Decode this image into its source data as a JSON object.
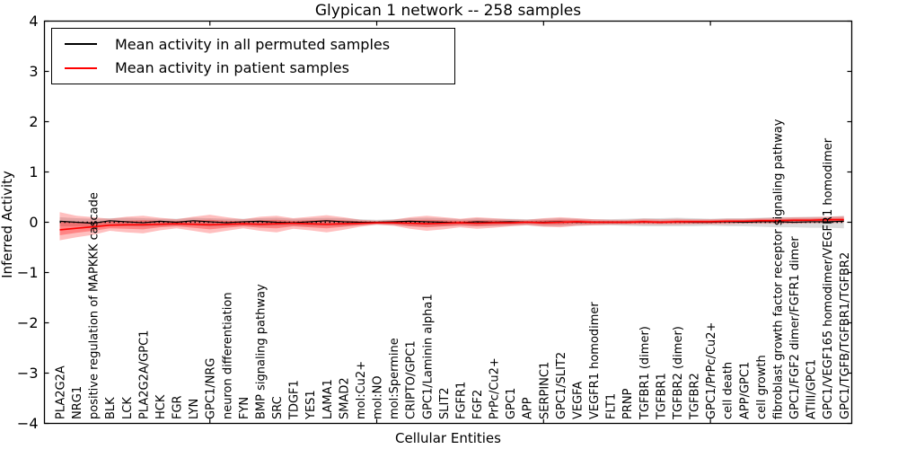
{
  "title": "Glypican 1 network -- 258 samples",
  "axes": {
    "x_label": "Cellular Entities",
    "y_label": "Inferred Activity"
  },
  "legend": {
    "position": "upper left",
    "items": [
      {
        "label": "Mean activity in all permuted samples",
        "color": "#000000"
      },
      {
        "label": "Mean activity in patient samples",
        "color": "#ff0000"
      }
    ]
  },
  "chart_data": {
    "type": "line",
    "title": "Glypican 1 network -- 258 samples",
    "xlabel": "Cellular Entities",
    "ylabel": "Inferred Activity",
    "ylim": [
      -4,
      4
    ],
    "yticks": [
      4,
      3,
      2,
      1,
      0,
      -1,
      -2,
      -3,
      -4
    ],
    "x_major_tick_indices": [
      9,
      19,
      29,
      39
    ],
    "grid": false,
    "legend_position": "upper left",
    "zero_line": {
      "style": "dotted",
      "color": "#000000",
      "y": 0
    },
    "categories": [
      "PLA2G2A",
      "NRG1",
      "positive regulation of MAPKKK cascade",
      "BLK",
      "LCK",
      "PLA2G2A/GPC1",
      "HCK",
      "FGR",
      "LYN",
      "GPC1/NRG",
      "neuron differentiation",
      "FYN",
      "BMP signaling pathway",
      "SRC",
      "TDGF1",
      "YES1",
      "LAMA1",
      "SMAD2",
      "mol:Cu2+",
      "mol:NO",
      "mol:Spermine",
      "CRIPTO/GPC1",
      "GPC1/Laminin alpha1",
      "SLIT2",
      "FGFR1",
      "FGF2",
      "PrPc/Cu2+",
      "GPC1",
      "APP",
      "SERPINC1",
      "GPC1/SLIT2",
      "VEGFA",
      "VEGFR1 homodimer",
      "FLT1",
      "PRNP",
      "TGFBR1 (dimer)",
      "TGFBR1",
      "TGFBR2 (dimer)",
      "TGFBR2",
      "GPC1/PrPc/Cu2+",
      "cell death",
      "APP/GPC1",
      "cell growth",
      "fibroblast growth factor receptor signaling pathway",
      "GPC1/FGF2 dimer/FGFR1 dimer",
      "ATIII/GPC1",
      "GPC1/VEGF165 homodimer/VEGFR1 homodimer",
      "GPC1/TGFB/TGFBR1/TGFBR2"
    ],
    "series": [
      {
        "name": "Mean activity in all permuted samples",
        "color": "#000000",
        "width": 1.2,
        "values": [
          0.02,
          0.0,
          -0.02,
          0.03,
          0.01,
          -0.01,
          0.02,
          0.0,
          0.03,
          0.01,
          -0.01,
          0.01,
          0.02,
          0.0,
          -0.01,
          0.01,
          0.03,
          0.01,
          0.0,
          0.0,
          0.01,
          0.02,
          0.01,
          0.0,
          -0.01,
          0.01,
          0.0,
          0.01,
          0.0,
          0.0,
          0.01,
          0.0,
          0.0,
          0.0,
          0.0,
          0.01,
          0.0,
          0.01,
          0.0,
          0.0,
          0.01,
          0.0,
          0.01,
          0.01,
          0.0,
          0.01,
          0.01,
          0.02
        ]
      },
      {
        "name": "Mean activity in patient samples",
        "color": "#ff0000",
        "width": 1.6,
        "values": [
          -0.15,
          -0.12,
          -0.09,
          -0.06,
          -0.05,
          -0.05,
          -0.04,
          -0.03,
          -0.04,
          -0.05,
          -0.04,
          -0.03,
          -0.04,
          -0.03,
          -0.02,
          -0.03,
          -0.04,
          -0.03,
          -0.02,
          -0.01,
          -0.01,
          -0.02,
          -0.03,
          -0.02,
          -0.01,
          -0.02,
          -0.01,
          -0.01,
          0.0,
          -0.01,
          0.0,
          0.01,
          0.0,
          0.0,
          0.0,
          0.01,
          0.0,
          0.01,
          0.01,
          0.01,
          0.02,
          0.02,
          0.03,
          0.03,
          0.04,
          0.04,
          0.05,
          0.05
        ]
      }
    ],
    "bands": [
      {
        "name": "permuted-samples-spread",
        "color": "#999999",
        "opacity": 0.35,
        "upper": [
          0.1,
          0.08,
          0.07,
          0.08,
          0.09,
          0.08,
          0.07,
          0.07,
          0.09,
          0.08,
          0.07,
          0.07,
          0.08,
          0.09,
          0.07,
          0.08,
          0.09,
          0.08,
          0.06,
          0.05,
          0.06,
          0.08,
          0.09,
          0.08,
          0.06,
          0.08,
          0.07,
          0.07,
          0.06,
          0.07,
          0.08,
          0.07,
          0.06,
          0.06,
          0.07,
          0.08,
          0.08,
          0.09,
          0.08,
          0.07,
          0.08,
          0.08,
          0.09,
          0.1,
          0.1,
          0.11,
          0.11,
          0.13
        ],
        "lower": [
          -0.08,
          -0.08,
          -0.09,
          -0.07,
          -0.08,
          -0.09,
          -0.08,
          -0.07,
          -0.07,
          -0.09,
          -0.08,
          -0.07,
          -0.08,
          -0.08,
          -0.07,
          -0.08,
          -0.08,
          -0.08,
          -0.06,
          -0.05,
          -0.06,
          -0.08,
          -0.09,
          -0.08,
          -0.07,
          -0.08,
          -0.08,
          -0.07,
          -0.06,
          -0.08,
          -0.08,
          -0.07,
          -0.06,
          -0.06,
          -0.07,
          -0.08,
          -0.08,
          -0.08,
          -0.08,
          -0.07,
          -0.08,
          -0.08,
          -0.09,
          -0.1,
          -0.1,
          -0.11,
          -0.11,
          -0.12
        ]
      },
      {
        "name": "patient-samples-spread-outer",
        "color": "#ff0000",
        "opacity": 0.25,
        "upper": [
          0.2,
          0.13,
          0.1,
          0.07,
          0.11,
          0.13,
          0.09,
          0.06,
          0.11,
          0.15,
          0.1,
          0.06,
          0.11,
          0.13,
          0.08,
          0.11,
          0.14,
          0.1,
          0.05,
          0.03,
          0.05,
          0.1,
          0.13,
          0.1,
          0.07,
          0.1,
          0.08,
          0.06,
          0.05,
          0.08,
          0.1,
          0.08,
          0.06,
          0.05,
          0.05,
          0.07,
          0.06,
          0.07,
          0.06,
          0.06,
          0.07,
          0.07,
          0.08,
          0.09,
          0.1,
          0.1,
          0.11,
          0.12
        ],
        "lower": [
          -0.36,
          -0.3,
          -0.25,
          -0.17,
          -0.2,
          -0.22,
          -0.16,
          -0.12,
          -0.17,
          -0.22,
          -0.17,
          -0.12,
          -0.17,
          -0.2,
          -0.13,
          -0.16,
          -0.2,
          -0.15,
          -0.09,
          -0.05,
          -0.07,
          -0.13,
          -0.17,
          -0.14,
          -0.1,
          -0.13,
          -0.11,
          -0.08,
          -0.06,
          -0.09,
          -0.1,
          -0.07,
          -0.06,
          -0.05,
          -0.05,
          -0.05,
          -0.05,
          -0.05,
          -0.04,
          -0.04,
          -0.04,
          -0.03,
          -0.03,
          -0.03,
          -0.03,
          -0.02,
          -0.02,
          -0.01
        ]
      },
      {
        "name": "patient-samples-spread-inner",
        "color": "#ff0000",
        "opacity": 0.3,
        "upper": [
          0.03,
          0.01,
          0.01,
          0.01,
          0.03,
          0.04,
          0.03,
          0.02,
          0.04,
          0.05,
          0.03,
          0.02,
          0.04,
          0.05,
          0.03,
          0.04,
          0.05,
          0.04,
          0.02,
          0.01,
          0.02,
          0.04,
          0.05,
          0.04,
          0.03,
          0.04,
          0.04,
          0.03,
          0.03,
          0.04,
          0.05,
          0.05,
          0.03,
          0.03,
          0.03,
          0.04,
          0.03,
          0.04,
          0.04,
          0.04,
          0.05,
          0.05,
          0.06,
          0.06,
          0.07,
          0.07,
          0.08,
          0.09
        ],
        "lower": [
          -0.26,
          -0.21,
          -0.17,
          -0.12,
          -0.13,
          -0.14,
          -0.1,
          -0.08,
          -0.11,
          -0.14,
          -0.11,
          -0.08,
          -0.11,
          -0.12,
          -0.08,
          -0.1,
          -0.12,
          -0.09,
          -0.06,
          -0.03,
          -0.04,
          -0.08,
          -0.1,
          -0.08,
          -0.06,
          -0.08,
          -0.06,
          -0.05,
          -0.03,
          -0.05,
          -0.05,
          -0.03,
          -0.03,
          -0.03,
          -0.03,
          -0.02,
          -0.03,
          -0.02,
          -0.02,
          -0.02,
          -0.01,
          -0.01,
          0.0,
          0.0,
          0.01,
          0.01,
          0.02,
          0.02
        ]
      }
    ]
  }
}
